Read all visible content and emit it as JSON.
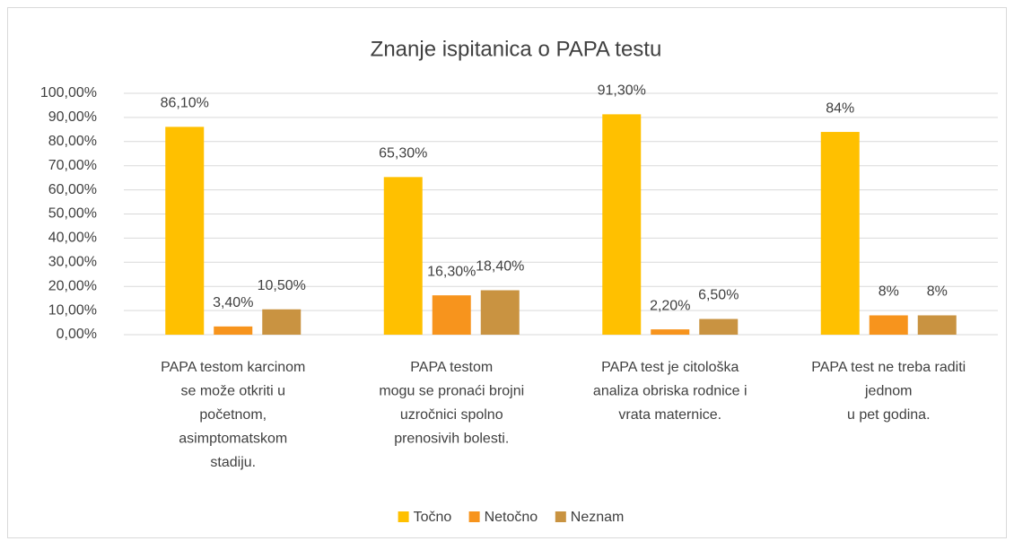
{
  "chart_data": {
    "type": "bar",
    "title": "Znanje ispitanica o PAPA testu",
    "categories": [
      [
        "PAPA testom karcinom",
        "se može otkriti u",
        "početnom,",
        "asimptomatskom",
        "stadiju."
      ],
      [
        "PAPA testom",
        "mogu se pronaći brojni",
        "uzročnici spolno",
        "prenosivih bolesti."
      ],
      [
        "PAPA test je citološka",
        "analiza obriska rodnice i",
        "vrata maternice."
      ],
      [
        "PAPA test ne treba raditi",
        "jednom",
        "u pet godina."
      ]
    ],
    "series": [
      {
        "name": "Točno",
        "color": "#ffc000",
        "values": [
          86.1,
          65.3,
          91.3,
          84
        ],
        "value_labels": [
          "86,10%",
          "65,30%",
          "91,30%",
          "84%"
        ]
      },
      {
        "name": "Netočno",
        "color": "#f7941d",
        "values": [
          3.4,
          16.3,
          2.2,
          8
        ],
        "value_labels": [
          "3,40%",
          "16,30%",
          "2,20%",
          "8%"
        ]
      },
      {
        "name": "Neznam",
        "color": "#c99341",
        "values": [
          10.5,
          18.4,
          6.5,
          8
        ],
        "value_labels": [
          "10,50%",
          "18,40%",
          "6,50%",
          "8%"
        ]
      }
    ],
    "ylim": [
      0,
      100
    ],
    "yticks": [
      {
        "value": 0,
        "label": "0,00%"
      },
      {
        "value": 10,
        "label": "10,00%"
      },
      {
        "value": 20,
        "label": "20,00%"
      },
      {
        "value": 30,
        "label": "30,00%"
      },
      {
        "value": 40,
        "label": "40,00%"
      },
      {
        "value": 50,
        "label": "50,00%"
      },
      {
        "value": 60,
        "label": "60,00%"
      },
      {
        "value": 70,
        "label": "70,00%"
      },
      {
        "value": 80,
        "label": "80,00%"
      },
      {
        "value": 90,
        "label": "90,00%"
      },
      {
        "value": 100,
        "label": "100,00%"
      }
    ],
    "grid": true,
    "legend": "bottom"
  }
}
